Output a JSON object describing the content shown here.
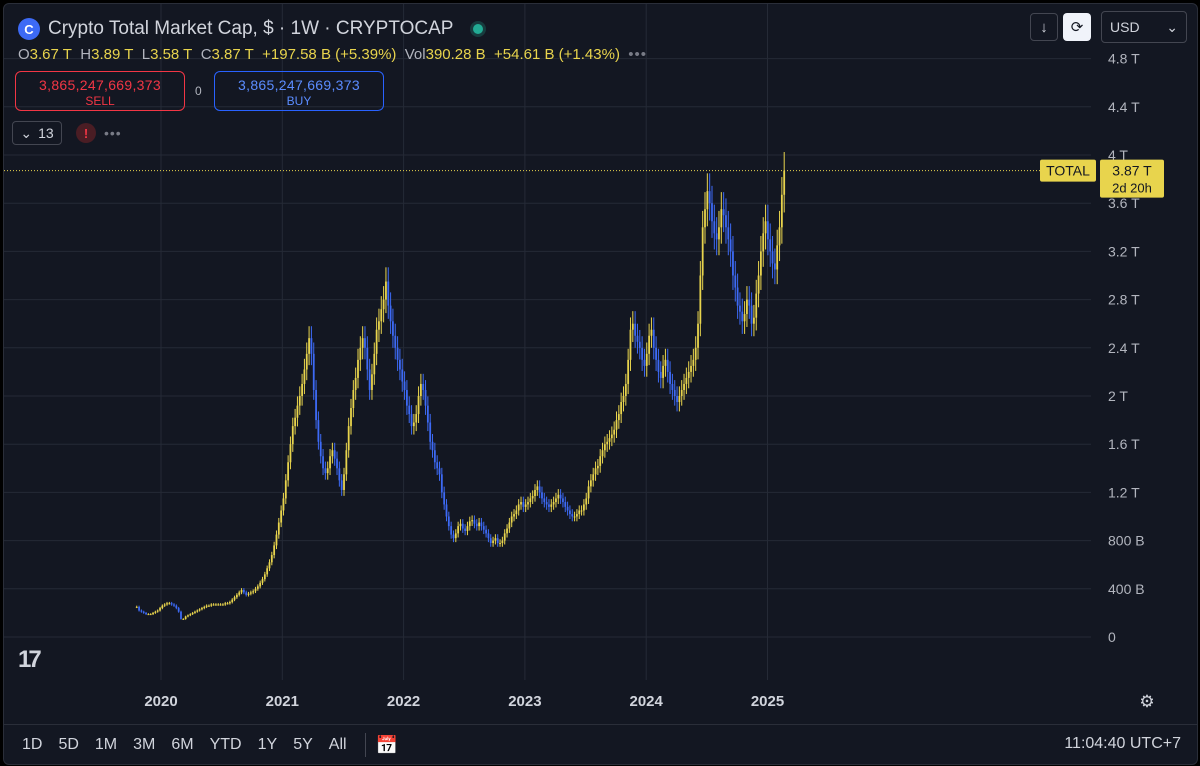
{
  "header": {
    "logo_glyph": "C",
    "title": "Crypto Total Market Cap, $ · 1W · CRYPTOCAP",
    "ohlc": {
      "o_label": "O",
      "o_value": "3.67 T",
      "h_label": "H",
      "h_value": "3.89 T",
      "l_label": "L",
      "l_value": "3.58 T",
      "c_label": "C",
      "c_value": "3.87 T",
      "change": "+197.58 B (+5.39%)",
      "vol_label": "Vol",
      "vol_value": "390.28 B",
      "vol_change": "+54.61 B (+1.43%)"
    },
    "more_dots": "•••"
  },
  "trade": {
    "sell_price": "3,865,247,669,373",
    "sell_label": "SELL",
    "spread": "0",
    "buy_price": "3,865,247,669,373",
    "buy_label": "BUY"
  },
  "indicators": {
    "count": "13",
    "warning_glyph": "!",
    "more_dots": "•••"
  },
  "toolbar": {
    "down_glyph": "↓",
    "sync_glyph": "⟳",
    "currency": "USD",
    "chevron": "⌄"
  },
  "footer": {
    "tv_logo": "17",
    "settings_glyph": "⚙",
    "ranges": [
      "1D",
      "5D",
      "1M",
      "3M",
      "6M",
      "YTD",
      "1Y",
      "5Y",
      "All"
    ],
    "calendar_glyph": "📅",
    "clock": "11:04:40 UTC+7"
  },
  "colors": {
    "background": "#131722",
    "up_candle": "#e8d44d",
    "down_candle": "#3d6af5",
    "grid": "#252a36",
    "price_line": "#e8d44d",
    "sell": "#f23645",
    "buy": "#2962ff"
  },
  "chart_data": {
    "type": "candlestick",
    "title": "Crypto Total Market Cap, $ · 1W · CRYPTOCAP",
    "interval": "1W",
    "x_ticks": [
      "2020",
      "2021",
      "2022",
      "2023",
      "2024",
      "2025"
    ],
    "y_ticks": [
      "0",
      "400 B",
      "800 B",
      "1.2 T",
      "1.6 T",
      "2 T",
      "2.4 T",
      "2.8 T",
      "3.2 T",
      "3.6 T",
      "4 T",
      "4.4 T",
      "4.8 T"
    ],
    "y_tick_values": [
      0,
      0.4,
      0.8,
      1.2,
      1.6,
      2.0,
      2.4,
      2.8,
      3.2,
      3.6,
      4.0,
      4.4,
      4.8
    ],
    "y_unit": "T",
    "ylim": [
      0,
      4.9
    ],
    "grid": true,
    "last_price_label": {
      "name": "TOTAL",
      "value": "3.87 T",
      "countdown": "2d 20h",
      "level": 3.87
    },
    "series": [
      {
        "name": "TOTAL",
        "x_start": 2019.8,
        "step_years": 0.0192,
        "close": [
          0.25,
          0.22,
          0.21,
          0.2,
          0.19,
          0.19,
          0.19,
          0.2,
          0.21,
          0.22,
          0.24,
          0.26,
          0.27,
          0.28,
          0.28,
          0.27,
          0.26,
          0.24,
          0.21,
          0.15,
          0.15,
          0.17,
          0.18,
          0.19,
          0.2,
          0.21,
          0.22,
          0.23,
          0.24,
          0.25,
          0.26,
          0.26,
          0.27,
          0.27,
          0.27,
          0.27,
          0.27,
          0.27,
          0.28,
          0.28,
          0.29,
          0.31,
          0.33,
          0.35,
          0.37,
          0.39,
          0.37,
          0.35,
          0.36,
          0.37,
          0.38,
          0.4,
          0.42,
          0.45,
          0.48,
          0.52,
          0.57,
          0.62,
          0.68,
          0.76,
          0.85,
          0.95,
          1.05,
          1.15,
          1.3,
          1.45,
          1.6,
          1.75,
          1.82,
          1.92,
          2.0,
          2.1,
          2.22,
          2.35,
          2.48,
          2.35,
          2.05,
          1.8,
          1.62,
          1.5,
          1.4,
          1.36,
          1.4,
          1.5,
          1.55,
          1.48,
          1.4,
          1.3,
          1.22,
          1.35,
          1.55,
          1.75,
          1.9,
          2.05,
          2.15,
          2.3,
          2.4,
          2.48,
          2.4,
          2.22,
          2.05,
          2.18,
          2.35,
          2.55,
          2.62,
          2.72,
          2.8,
          2.95,
          2.75,
          2.62,
          2.5,
          2.4,
          2.3,
          2.22,
          2.12,
          2.05,
          1.92,
          1.85,
          1.75,
          1.78,
          1.85,
          2.0,
          2.1,
          2.05,
          1.92,
          1.78,
          1.62,
          1.55,
          1.45,
          1.4,
          1.35,
          1.2,
          1.1,
          1.0,
          0.92,
          0.85,
          0.82,
          0.86,
          0.92,
          0.94,
          0.9,
          0.88,
          0.92,
          0.96,
          0.97,
          0.94,
          0.92,
          0.95,
          0.92,
          0.89,
          0.86,
          0.82,
          0.78,
          0.8,
          0.82,
          0.78,
          0.78,
          0.8,
          0.86,
          0.9,
          0.95,
          1.0,
          1.02,
          1.05,
          1.1,
          1.12,
          1.08,
          1.1,
          1.12,
          1.15,
          1.17,
          1.22,
          1.25,
          1.2,
          1.15,
          1.12,
          1.1,
          1.08,
          1.1,
          1.12,
          1.15,
          1.18,
          1.15,
          1.12,
          1.08,
          1.05,
          1.02,
          1.0,
          1.0,
          1.02,
          1.05,
          1.05,
          1.1,
          1.15,
          1.25,
          1.3,
          1.35,
          1.4,
          1.42,
          1.5,
          1.55,
          1.6,
          1.62,
          1.65,
          1.68,
          1.72,
          1.8,
          1.85,
          1.95,
          2.0,
          2.1,
          2.3,
          2.55,
          2.6,
          2.5,
          2.45,
          2.4,
          2.3,
          2.25,
          2.35,
          2.5,
          2.55,
          2.4,
          2.3,
          2.2,
          2.15,
          2.25,
          2.3,
          2.2,
          2.1,
          2.05,
          2.0,
          1.95,
          2.0,
          2.05,
          2.1,
          2.15,
          2.2,
          2.25,
          2.3,
          2.4,
          2.6,
          3.0,
          3.4,
          3.55,
          3.7,
          3.6,
          3.45,
          3.35,
          3.3,
          3.4,
          3.55,
          3.5,
          3.4,
          3.3,
          3.2,
          3.0,
          2.9,
          2.75,
          2.7,
          2.62,
          2.68,
          2.8,
          2.75,
          2.6,
          2.65,
          2.85,
          3.0,
          3.2,
          3.35,
          3.45,
          3.3,
          3.2,
          3.1,
          3.05,
          3.25,
          3.4,
          3.67,
          3.87
        ]
      }
    ]
  }
}
